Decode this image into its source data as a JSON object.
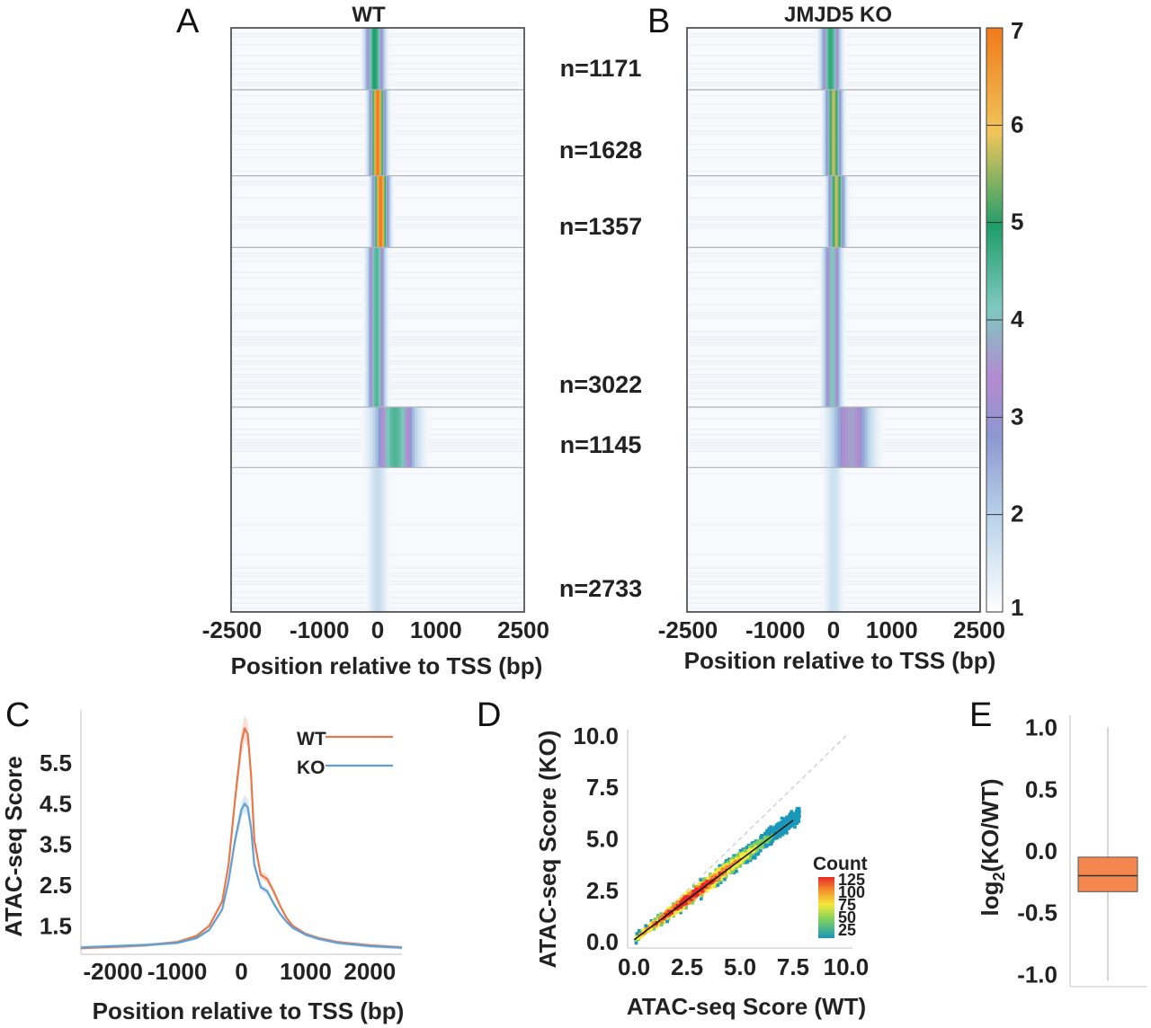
{
  "panels": {
    "A": "A",
    "B": "B",
    "C": "C",
    "D": "D",
    "E": "E"
  },
  "chart_data": [
    {
      "panel": "A",
      "type": "heatmap",
      "title": "WT",
      "xlabel": "Position relative to TSS (bp)",
      "x_ticks": [
        "-2500",
        "-1000",
        "0",
        "1000",
        "2500"
      ],
      "x_tick_values": [
        -2500,
        -1000,
        0,
        1000,
        2500
      ],
      "xlim": [
        -2500,
        2500
      ],
      "clusters": [
        {
          "label": "n=1171",
          "n": 1171,
          "peak": 5.0,
          "center_bp": -50,
          "width_bp": 140
        },
        {
          "label": "n=1628",
          "n": 1628,
          "peak": 7.0,
          "center_bp": 0,
          "width_bp": 120
        },
        {
          "label": "n=1357",
          "n": 1357,
          "peak": 7.0,
          "center_bp": 50,
          "width_bp": 120
        },
        {
          "label": "n=3022",
          "n": 3022,
          "peak": 4.5,
          "center_bp": -20,
          "width_bp": 130
        },
        {
          "label": "n=1145",
          "n": 1145,
          "peak": 4.5,
          "center_bp": 300,
          "width_bp": 320
        },
        {
          "label": "n=2733",
          "n": 2733,
          "peak": 1.8,
          "center_bp": 0,
          "width_bp": 150
        }
      ]
    },
    {
      "panel": "B",
      "type": "heatmap",
      "title": "JMJD5 KO",
      "xlabel": "Position relative to TSS (bp)",
      "x_ticks": [
        "-2500",
        "-1000",
        "0",
        "1000",
        "2500"
      ],
      "x_tick_values": [
        -2500,
        -1000,
        0,
        1000,
        2500
      ],
      "xlim": [
        -2500,
        2500
      ],
      "clusters": [
        {
          "n": 1171,
          "peak": 4.8,
          "center_bp": -50,
          "width_bp": 140
        },
        {
          "n": 1628,
          "peak": 5.8,
          "center_bp": 0,
          "width_bp": 120
        },
        {
          "n": 1357,
          "peak": 5.8,
          "center_bp": 50,
          "width_bp": 120
        },
        {
          "n": 3022,
          "peak": 4.0,
          "center_bp": -20,
          "width_bp": 130
        },
        {
          "n": 1145,
          "peak": 3.5,
          "center_bp": 300,
          "width_bp": 320
        },
        {
          "n": 2733,
          "peak": 1.7,
          "center_bp": 0,
          "width_bp": 150
        }
      ],
      "colorbar": {
        "ticks": [
          "1",
          "2",
          "3",
          "4",
          "5",
          "6",
          "7"
        ],
        "range": [
          1,
          7
        ],
        "colors": [
          "#ffffff",
          "#b9d4ea",
          "#8c98d0",
          "#b48ad2",
          "#7ec9c0",
          "#1f9e6a",
          "#f0c65a",
          "#f07a1c"
        ]
      }
    },
    {
      "panel": "C",
      "type": "line",
      "xlabel": "Position relative to TSS (bp)",
      "ylabel": "ATAC-seq Score",
      "xlim": [
        -2500,
        2500
      ],
      "ylim": [
        0.8,
        6.8
      ],
      "x_ticks": [
        "-2000",
        "-1000",
        "0",
        "1000",
        "2000"
      ],
      "x_tick_values": [
        -2000,
        -1000,
        0,
        1000,
        2000
      ],
      "y_ticks": [
        "1.5",
        "2.5",
        "3.5",
        "4.5",
        "5.5"
      ],
      "y_tick_values": [
        1.5,
        2.5,
        3.5,
        4.5,
        5.5
      ],
      "legend_position": "top-right",
      "x": [
        -2500,
        -2000,
        -1500,
        -1000,
        -700,
        -500,
        -300,
        -200,
        -100,
        0,
        50,
        100,
        150,
        200,
        300,
        400,
        500,
        600,
        700,
        800,
        1000,
        1200,
        1500,
        2000,
        2500
      ],
      "series": [
        {
          "name": "WT",
          "color": "#e8784a",
          "values": [
            0.95,
            0.98,
            1.02,
            1.1,
            1.25,
            1.5,
            2.1,
            3.0,
            4.6,
            6.0,
            6.35,
            6.2,
            5.2,
            3.6,
            2.75,
            2.65,
            2.35,
            2.0,
            1.7,
            1.5,
            1.3,
            1.2,
            1.1,
            1.02,
            0.97
          ]
        },
        {
          "name": "KO",
          "color": "#5f9fd3",
          "values": [
            0.97,
            1.0,
            1.03,
            1.08,
            1.2,
            1.4,
            1.9,
            2.6,
            3.6,
            4.35,
            4.5,
            4.4,
            3.9,
            3.0,
            2.45,
            2.35,
            2.05,
            1.8,
            1.6,
            1.45,
            1.28,
            1.18,
            1.08,
            1.0,
            0.96
          ]
        }
      ]
    },
    {
      "panel": "D",
      "type": "scatter",
      "xlabel": "ATAC-seq Score (WT)",
      "ylabel": "ATAC-seq Score (KO)",
      "xlim": [
        -0.3,
        10.3
      ],
      "ylim": [
        -0.3,
        10.3
      ],
      "x_ticks": [
        "0.0",
        "2.5",
        "5.0",
        "7.5",
        "10.0"
      ],
      "x_tick_values": [
        0,
        2.5,
        5,
        7.5,
        10
      ],
      "y_ticks": [
        "0.0",
        "2.5",
        "5.0",
        "7.5",
        "10.0"
      ],
      "y_tick_values": [
        0,
        2.5,
        5,
        7.5,
        10
      ],
      "fit_line": {
        "x": [
          0,
          7.5
        ],
        "y": [
          0.1,
          5.9
        ]
      },
      "identity_line": {
        "x": [
          0,
          10
        ],
        "y": [
          0,
          10
        ]
      },
      "density": {
        "x_range": [
          0.1,
          7.8
        ],
        "slope": 0.78,
        "intercept": 0.1,
        "spread": 0.55
      },
      "legend": {
        "title": "Count",
        "labels": [
          "125",
          "100",
          "75",
          "50",
          "25"
        ],
        "values": [
          125,
          100,
          75,
          50,
          25
        ],
        "colors": [
          "#e8282a",
          "#f28a2c",
          "#f5e83a",
          "#7ccf60",
          "#1b97b8"
        ]
      }
    },
    {
      "panel": "E",
      "type": "box",
      "ylabel": "log2(KO/WT)",
      "ylabel_base": "log",
      "ylabel_sub": "2",
      "ylabel_rest": "(KO/WT)",
      "ylim": [
        -1.1,
        1.1
      ],
      "y_ticks": [
        "1.0",
        "0.5",
        "0.0",
        "-0.5",
        "-1.0"
      ],
      "y_tick_values": [
        1.0,
        0.5,
        0.0,
        -0.5,
        -1.0
      ],
      "box": {
        "q1": -0.33,
        "median": -0.2,
        "q3": -0.05,
        "whisker_low": -1.05,
        "whisker_high": 1.0,
        "color": "#f4874f"
      }
    }
  ]
}
